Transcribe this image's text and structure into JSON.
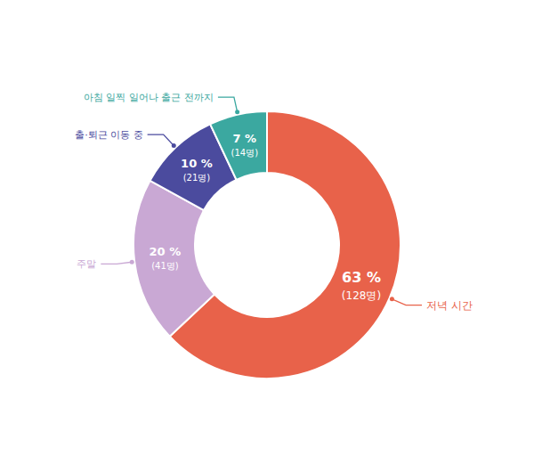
{
  "chart_data": {
    "type": "donut",
    "categories": [
      "저녁 시간",
      "주말",
      "출·퇴근 이동 중",
      "아침 일찍 일어나 출근 전까지"
    ],
    "values": [
      63,
      20,
      10,
      7
    ],
    "value_labels": [
      "63 %",
      "20 %",
      "10 %",
      "7 %"
    ],
    "counts": [
      "(128명)",
      "(41명)",
      "(21명)",
      "(14명)"
    ],
    "colors": [
      "#E8624A",
      "#C9A8D4",
      "#4B4B9E",
      "#3BA8A0"
    ],
    "data_labels": true
  }
}
